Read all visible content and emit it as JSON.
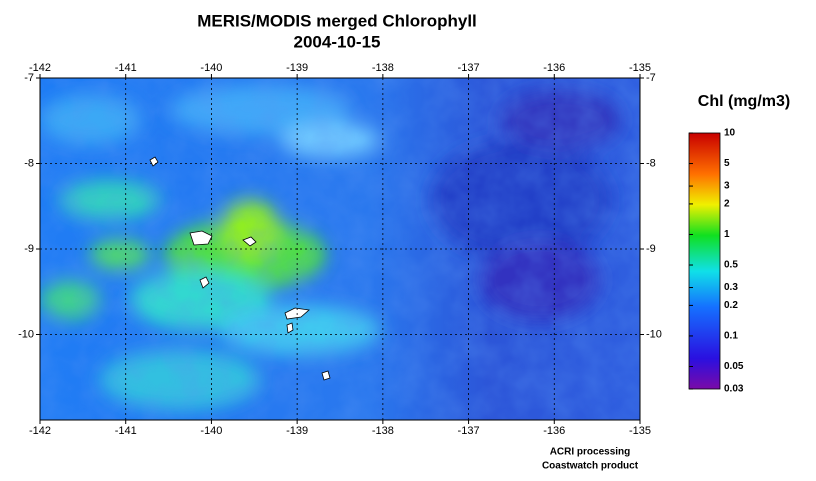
{
  "header": {
    "title": "MERIS/MODIS merged Chlorophyll",
    "date": "2004-10-15"
  },
  "map": {
    "lonlim": [
      -142,
      -135
    ],
    "latlim": [
      -7,
      -11
    ],
    "lon_ticks": [
      -142,
      -141,
      -140,
      -139,
      -138,
      -137,
      -136,
      -135
    ],
    "lat_ticks": [
      -7,
      -8,
      -9,
      -10
    ]
  },
  "colorbar": {
    "title": "Chl (mg/m3)",
    "scale": "log",
    "lim": [
      0.03,
      10
    ],
    "ticks": [
      10,
      5,
      3,
      2,
      1,
      0.5,
      0.3,
      0.2,
      0.1,
      0.05,
      0.03
    ]
  },
  "credits": [
    "ACRI processing",
    "Coastwatch product"
  ]
}
